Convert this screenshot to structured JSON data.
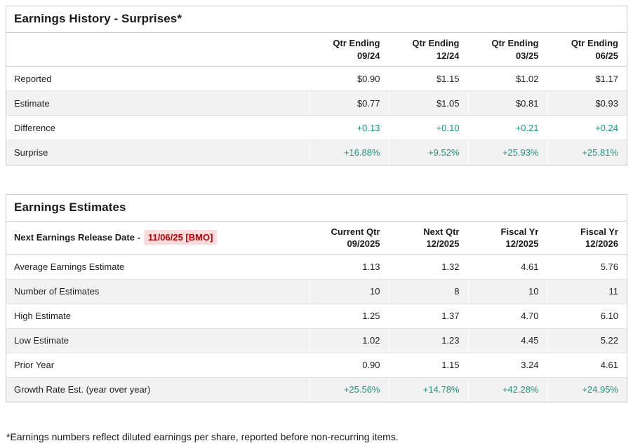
{
  "colors": {
    "green_accent": "#16997d",
    "red_accent": "#c40000",
    "red_highlight_bg": "#fcdcdc",
    "row_alt_bg": "#f2f2f2",
    "border": "#c9c9c9"
  },
  "history": {
    "title": "Earnings History - Surprises*",
    "columns": [
      {
        "label": "Qtr Ending",
        "period": "09/24"
      },
      {
        "label": "Qtr Ending",
        "period": "12/24"
      },
      {
        "label": "Qtr Ending",
        "period": "03/25"
      },
      {
        "label": "Qtr Ending",
        "period": "06/25"
      }
    ],
    "rows": [
      {
        "label": "Reported",
        "values": [
          "$0.90",
          "$1.15",
          "$1.02",
          "$1.17"
        ],
        "green": false
      },
      {
        "label": "Estimate",
        "values": [
          "$0.77",
          "$1.05",
          "$0.81",
          "$0.93"
        ],
        "green": false
      },
      {
        "label": "Difference",
        "values": [
          "+0.13",
          "+0.10",
          "+0.21",
          "+0.24"
        ],
        "green": true
      },
      {
        "label": "Surprise",
        "values": [
          "+16.88%",
          "+9.52%",
          "+25.93%",
          "+25.81%"
        ],
        "green": true
      }
    ]
  },
  "estimates": {
    "title": "Earnings Estimates",
    "release_label": "Next Earnings Release Date -",
    "release_date": "11/06/25 [BMO]",
    "columns": [
      {
        "label": "Current Qtr",
        "period": "09/2025"
      },
      {
        "label": "Next Qtr",
        "period": "12/2025"
      },
      {
        "label": "Fiscal Yr",
        "period": "12/2025"
      },
      {
        "label": "Fiscal Yr",
        "period": "12/2026"
      }
    ],
    "rows": [
      {
        "label": "Average Earnings Estimate",
        "values": [
          "1.13",
          "1.32",
          "4.61",
          "5.76"
        ],
        "green": false
      },
      {
        "label": "Number of Estimates",
        "values": [
          "10",
          "8",
          "10",
          "11"
        ],
        "green": false
      },
      {
        "label": "High Estimate",
        "values": [
          "1.25",
          "1.37",
          "4.70",
          "6.10"
        ],
        "green": false
      },
      {
        "label": "Low Estimate",
        "values": [
          "1.02",
          "1.23",
          "4.45",
          "5.22"
        ],
        "green": false
      },
      {
        "label": "Prior Year",
        "values": [
          "0.90",
          "1.15",
          "3.24",
          "4.61"
        ],
        "green": false
      },
      {
        "label": "Growth Rate Est. (year over year)",
        "values": [
          "+25.56%",
          "+14.78%",
          "+42.28%",
          "+24.95%"
        ],
        "green": true
      }
    ]
  },
  "footnote": "*Earnings numbers reflect diluted earnings per share, reported before non-recurring items."
}
